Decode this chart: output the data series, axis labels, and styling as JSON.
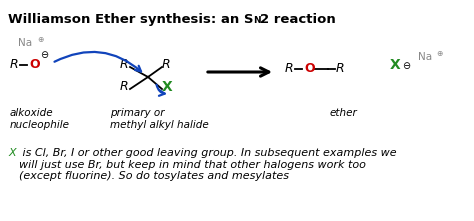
{
  "bg_color": "#ffffff",
  "figsize": [
    4.74,
    2.21
  ],
  "dpi": 100,
  "title1": "Williamson Ether synthesis: an S",
  "title_sub": "N",
  "title2": "2 reaction",
  "label_alkoxide": "alkoxide\nnucleophile",
  "label_halide": "primary or\nmethyl alkyl halide",
  "label_ether": "ether",
  "footnote_x": "X",
  "footnote_rest": " is Cl, Br, I or other good leaving group. In subsequent examples we\nwill just use Br, but keep in mind that other halogens work too\n(except fluorine). So do tosylates and mesylates",
  "green": "#228B22",
  "red": "#cc0000",
  "blue": "#1144bb",
  "gray": "#888888"
}
